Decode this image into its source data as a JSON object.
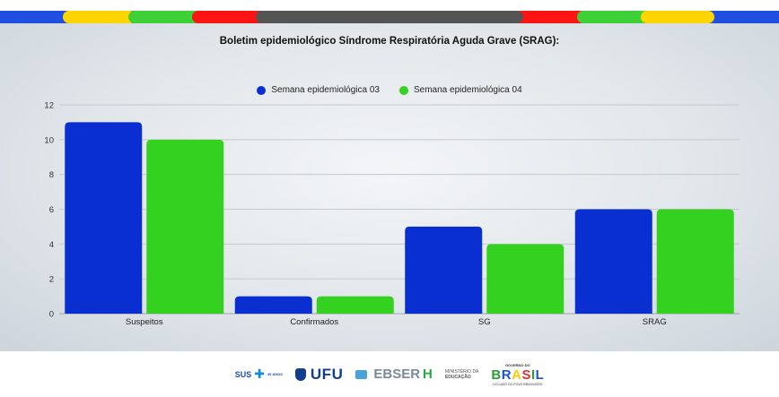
{
  "chart_data": {
    "type": "bar",
    "title": "Boletim epidemiológico Síndrome Respiratória Aguda Grave (SRAG):",
    "categories": [
      "Suspeitos",
      "Confirmados",
      "SG",
      "SRAG"
    ],
    "series": [
      {
        "name": "Semana epidemiológica 03",
        "color": "#0a2fd0",
        "values": [
          11,
          1,
          5,
          6
        ]
      },
      {
        "name": "Semana epidemiológica 04",
        "color": "#35d120",
        "values": [
          10,
          1,
          4,
          6
        ]
      }
    ],
    "yticks": [
      0,
      2,
      4,
      6,
      8,
      10,
      12
    ],
    "ylim": [
      0,
      12
    ],
    "grid": true,
    "legend_position": "top-center"
  },
  "footer": {
    "sus_text": "SUS",
    "sus_sub": "35 ANOS",
    "ufu_text": "UFU",
    "ebserh_text": "EBSER",
    "ebserh_h": "H",
    "mec_line1": "MINISTÉRIO DA",
    "mec_line2": "EDUCAÇÃO",
    "gov_top": "GOVERNO DO",
    "gov_word": "BRASIL",
    "gov_bottom": "DO LADO DO POVO BRASILEIRO"
  },
  "colors": {
    "stripe_blue": "#1f4fe0",
    "stripe_yellow": "#ffd500",
    "stripe_green": "#3fcf36",
    "stripe_red": "#ff1414",
    "stripe_gray": "#545454"
  }
}
